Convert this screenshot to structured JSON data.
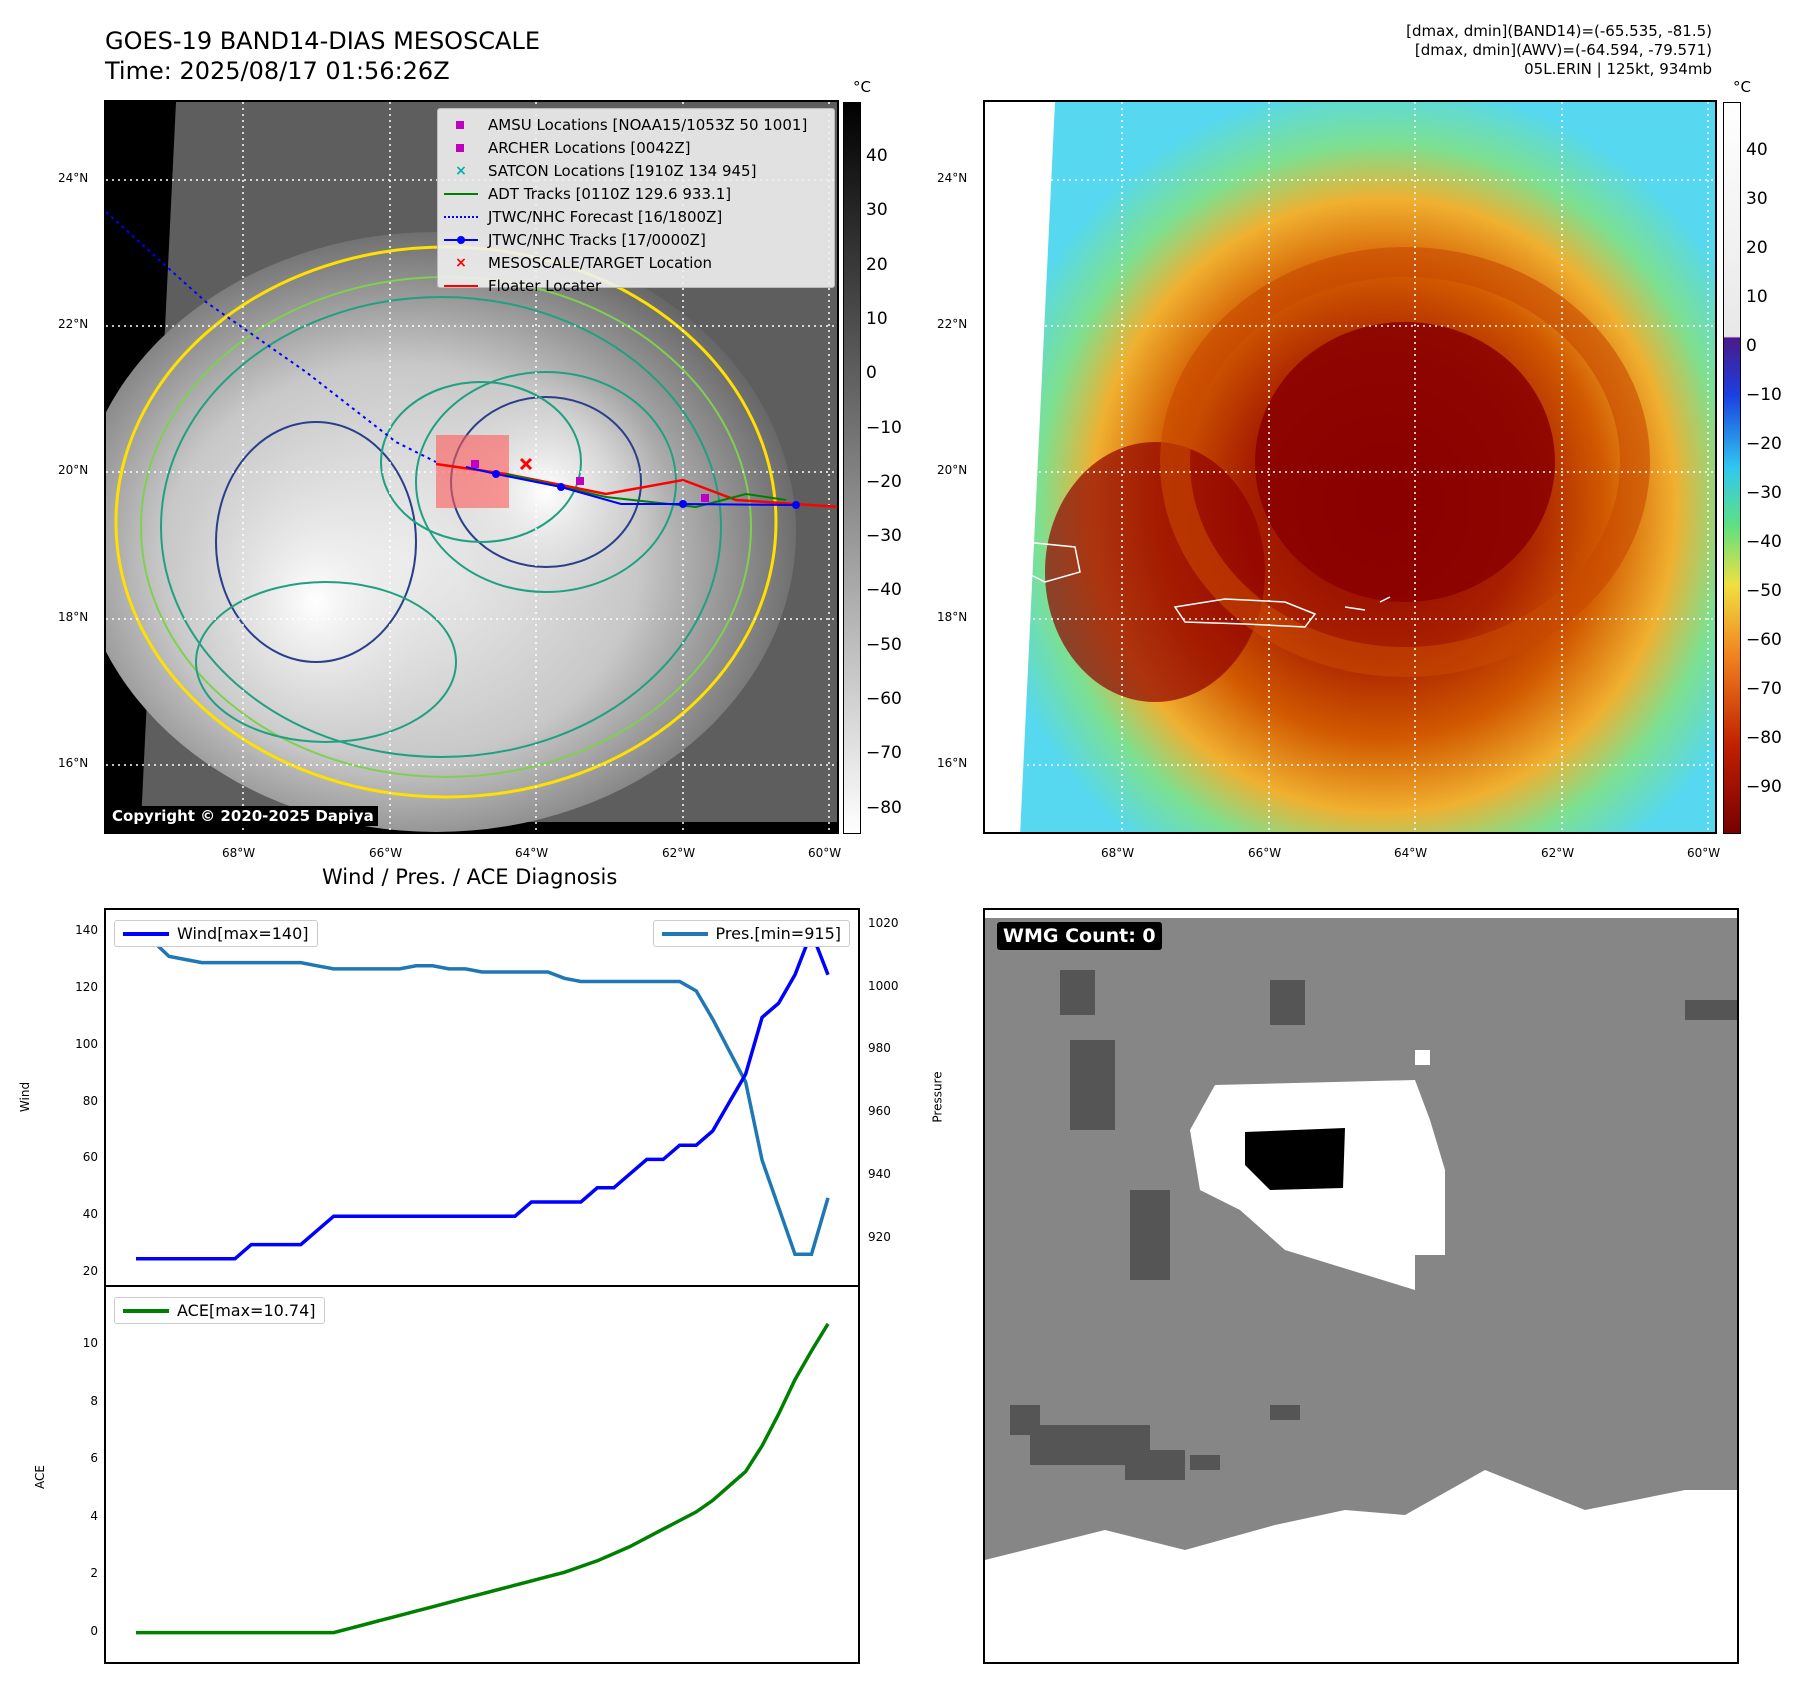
{
  "header": {
    "title_line1": "GOES-19 BAND14-DIAS MESOSCALE",
    "title_line2": "Time: 2025/08/17 01:56:26Z",
    "info_line1": "[dmax, dmin](BAND14)=(-65.535, -81.5)",
    "info_line2": "[dmax, dmin](AWV)=(-64.594, -79.571)",
    "info_line3": "05L.ERIN | 125kt, 934mb"
  },
  "map": {
    "lat_ticks": [
      "24°N",
      "22°N",
      "20°N",
      "18°N",
      "16°N"
    ],
    "lon_ticks": [
      "68°W",
      "66°W",
      "64°W",
      "62°W",
      "60°W"
    ],
    "copyright": "Copyright © 2020-2025 Dapiya",
    "legend": [
      {
        "label": "AMSU Locations [NOAA15/1053Z 50 1001]",
        "marker": "square",
        "color": "#c000c0"
      },
      {
        "label": "ARCHER Locations [0042Z]",
        "marker": "square",
        "color": "#c000c0"
      },
      {
        "label": "SATCON Locations [1910Z 134 945]",
        "marker": "x",
        "color": "#00b0b0"
      },
      {
        "label": "ADT Tracks [0110Z 129.6 933.1]",
        "marker": "line",
        "color": "#008000"
      },
      {
        "label": "JTWC/NHC Forecast [16/1800Z]",
        "marker": "dotted",
        "color": "#0000ff"
      },
      {
        "label": "JTWC/NHC Tracks [17/0000Z]",
        "marker": "line-dot",
        "color": "#0000ff"
      },
      {
        "label": "MESOSCALE/TARGET Location",
        "marker": "x",
        "color": "#ff0000"
      },
      {
        "label": "Floater Locater",
        "marker": "line",
        "color": "#ff0000"
      }
    ]
  },
  "colorbar_gray": {
    "unit": "°C",
    "ticks": [
      "40",
      "30",
      "20",
      "10",
      "0",
      "−10",
      "−20",
      "−30",
      "−40",
      "−50",
      "−60",
      "−70",
      "−80"
    ]
  },
  "colorbar_color": {
    "unit": "°C",
    "ticks": [
      "40",
      "30",
      "20",
      "10",
      "0",
      "−10",
      "−20",
      "−30",
      "−40",
      "−50",
      "−60",
      "−70",
      "−80",
      "−90"
    ]
  },
  "colors": {
    "deep_core": "#8a0000",
    "ring": "#c84a00",
    "outer": "#e89a2a",
    "env": "#5de0a0",
    "cyan": "#55d8f0"
  },
  "diagnosis": {
    "title": "Wind / Pres. / ACE Diagnosis",
    "wind_ylabel": "Wind",
    "pres_ylabel": "Pressure",
    "ace_ylabel": "ACE",
    "wind_ticks": [
      "140",
      "120",
      "100",
      "80",
      "60",
      "40",
      "20"
    ],
    "pres_ticks": [
      "1020",
      "1000",
      "980",
      "960",
      "940",
      "920"
    ],
    "ace_ticks": [
      "10",
      "8",
      "6",
      "4",
      "2",
      "0"
    ]
  },
  "wmg": {
    "label": "WMG Count: 0"
  },
  "chart_data": [
    {
      "type": "line",
      "name": "wind_pressure",
      "series": [
        {
          "name": "Wind[max=140]",
          "color": "#0000ff",
          "values": [
            25,
            25,
            25,
            25,
            25,
            25,
            25,
            30,
            30,
            30,
            30,
            35,
            40,
            40,
            40,
            40,
            40,
            40,
            40,
            40,
            40,
            40,
            40,
            40,
            45,
            45,
            45,
            45,
            50,
            50,
            55,
            60,
            60,
            65,
            65,
            70,
            80,
            90,
            110,
            115,
            125,
            140,
            125
          ]
        },
        {
          "name": "Pres.[min=915]",
          "color": "#1f77b4",
          "values": [
            1015,
            1015,
            1010,
            1009,
            1008,
            1008,
            1008,
            1008,
            1008,
            1008,
            1008,
            1007,
            1006,
            1006,
            1006,
            1006,
            1006,
            1007,
            1007,
            1006,
            1006,
            1005,
            1005,
            1005,
            1005,
            1005,
            1003,
            1002,
            1002,
            1002,
            1002,
            1002,
            1002,
            1002,
            999,
            990,
            980,
            970,
            945,
            930,
            915,
            915,
            933
          ]
        }
      ],
      "wind_ylim": [
        20,
        145
      ],
      "pres_ylim": [
        910,
        1020
      ]
    },
    {
      "type": "line",
      "name": "ace",
      "series": [
        {
          "name": "ACE[max=10.74]",
          "color": "#008000",
          "values": [
            0,
            0,
            0,
            0,
            0,
            0,
            0,
            0,
            0,
            0,
            0,
            0,
            0,
            0.15,
            0.3,
            0.45,
            0.6,
            0.75,
            0.9,
            1.05,
            1.2,
            1.35,
            1.5,
            1.65,
            1.8,
            1.95,
            2.1,
            2.3,
            2.5,
            2.75,
            3.0,
            3.3,
            3.6,
            3.9,
            4.2,
            4.6,
            5.1,
            5.6,
            6.5,
            7.6,
            8.8,
            9.8,
            10.74
          ]
        }
      ],
      "ylim": [
        -0.5,
        11.5
      ]
    }
  ]
}
